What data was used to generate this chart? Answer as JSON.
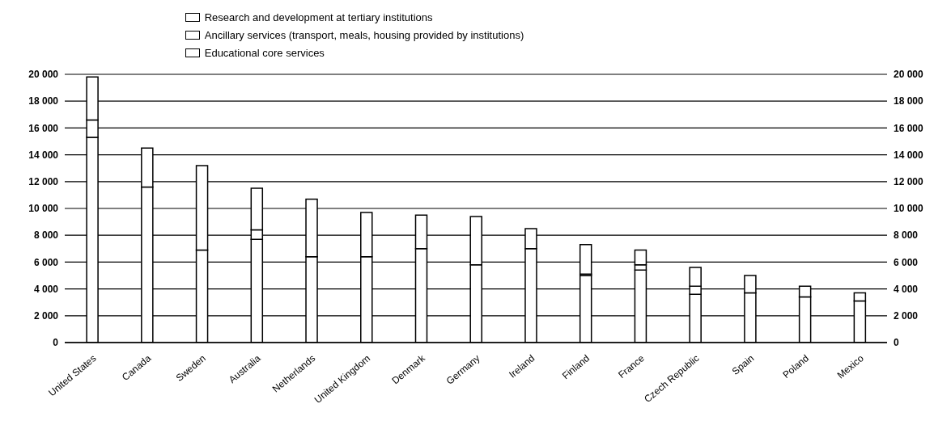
{
  "chart_data": {
    "type": "bar",
    "stacked": true,
    "categories": [
      "United States",
      "Canada",
      "Sweden",
      "Australia",
      "Netherlands",
      "United Kingdom",
      "Denmark",
      "Germany",
      "Ireland",
      "Finland",
      "France",
      "Czech Republic",
      "Spain",
      "Poland",
      "Mexico"
    ],
    "series": [
      {
        "name": "Educational core services",
        "color": "#ffffff",
        "values": [
          15300,
          11600,
          6900,
          7700,
          6400,
          6400,
          7000,
          5800,
          7000,
          5000,
          5400,
          3600,
          3700,
          3400,
          3100
        ]
      },
      {
        "name": "Ancillary services (transport, meals, housing provided by institutions)",
        "color": "#ffffff",
        "values": [
          1300,
          null,
          null,
          700,
          null,
          null,
          null,
          null,
          null,
          100,
          400,
          600,
          null,
          null,
          null
        ]
      },
      {
        "name": "Research and development at tertiary institutions",
        "color": "#ffffff",
        "values": [
          3200,
          2900,
          6300,
          3100,
          4300,
          3300,
          2500,
          3600,
          1500,
          2200,
          1100,
          1400,
          1300,
          800,
          600
        ]
      }
    ],
    "ylim": [
      0,
      20000
    ],
    "yticks": [
      {
        "value": 0,
        "label": "0"
      },
      {
        "value": 2000,
        "label": "2 000"
      },
      {
        "value": 4000,
        "label": "4 000"
      },
      {
        "value": 6000,
        "label": "6 000"
      },
      {
        "value": 8000,
        "label": "8 000"
      },
      {
        "value": 10000,
        "label": "10 000"
      },
      {
        "value": 12000,
        "label": "12 000"
      },
      {
        "value": 14000,
        "label": "14 000"
      },
      {
        "value": 16000,
        "label": "16 000"
      },
      {
        "value": 18000,
        "label": "18 000"
      },
      {
        "value": 20000,
        "label": "20 000"
      }
    ],
    "y2lim": [
      0,
      20000
    ],
    "y2ticks": [
      {
        "value": 0,
        "label": "0"
      },
      {
        "value": 2000,
        "label": "2 000"
      },
      {
        "value": 4000,
        "label": "4 000"
      },
      {
        "value": 6000,
        "label": "6 000"
      },
      {
        "value": 8000,
        "label": "8 000"
      },
      {
        "value": 10000,
        "label": "10 000"
      },
      {
        "value": 12000,
        "label": "12 000"
      },
      {
        "value": 14000,
        "label": "14 000"
      },
      {
        "value": 16000,
        "label": "16 000"
      },
      {
        "value": 18000,
        "label": "18 000"
      },
      {
        "value": 20000,
        "label": "20 000"
      }
    ],
    "grid": "y",
    "legend": "top"
  }
}
